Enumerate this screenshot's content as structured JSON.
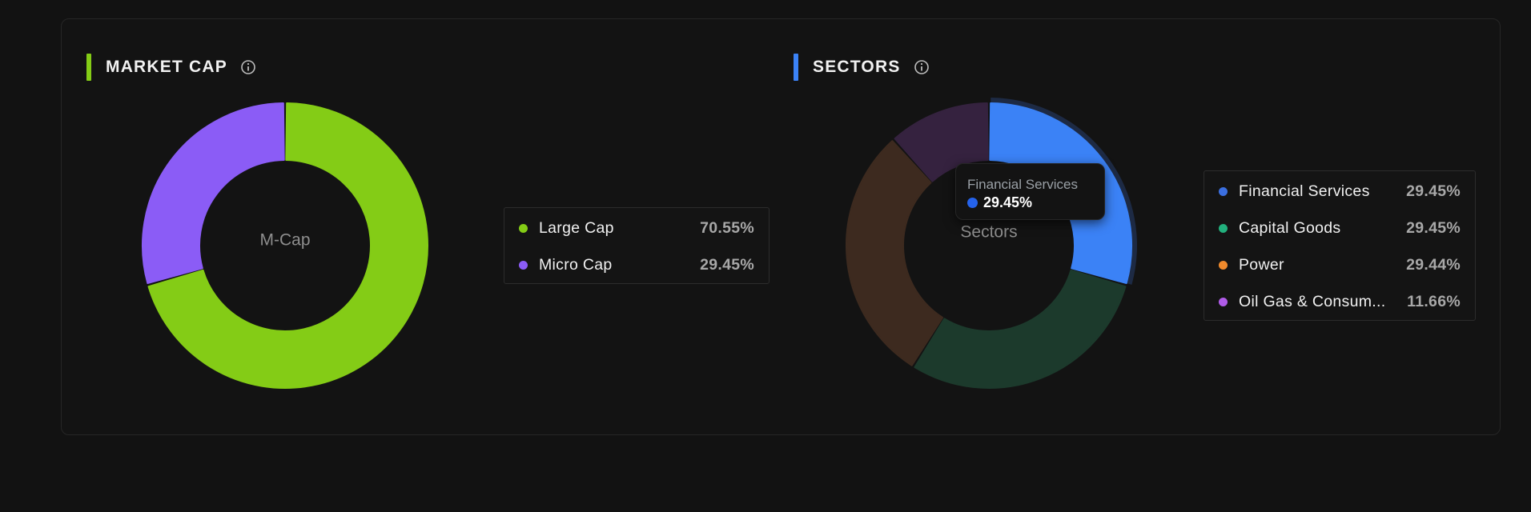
{
  "market_cap": {
    "title": "MARKET CAP",
    "accent": "#84cc16",
    "icon": "info-icon",
    "center_label": "M-Cap",
    "legend": [
      {
        "label": "Large Cap",
        "value": "70.55%",
        "color": "#84cc16"
      },
      {
        "label": "Micro Cap",
        "value": "29.45%",
        "color": "#8b5cf6"
      }
    ]
  },
  "sectors": {
    "title": "SECTORS",
    "accent": "#3b82f6",
    "icon": "info-icon",
    "center_label": "Sectors",
    "legend": [
      {
        "label": "Financial Services",
        "value": "29.45%",
        "color": "#3b82f6"
      },
      {
        "label": "Capital Goods",
        "value": "29.45%",
        "color": "#22b07d"
      },
      {
        "label": "Power",
        "value": "29.44%",
        "color": "#f08a2c"
      },
      {
        "label": "Oil Gas & Consum...",
        "value": "11.66%",
        "color": "#b05ce8"
      }
    ],
    "tooltip": {
      "title": "Financial Services",
      "value": "29.45%",
      "color": "#3b82f6"
    }
  },
  "chart_data": [
    {
      "type": "pie",
      "donut": true,
      "title": "MARKET CAP",
      "center_label": "M-Cap",
      "categories": [
        "Large Cap",
        "Micro Cap"
      ],
      "values": [
        70.55,
        29.45
      ],
      "colors": [
        "#84cc16",
        "#8b5cf6"
      ],
      "legend": "right"
    },
    {
      "type": "pie",
      "donut": true,
      "title": "SECTORS",
      "center_label": "Sectors",
      "categories": [
        "Financial Services",
        "Capital Goods",
        "Power",
        "Oil Gas & Consum..."
      ],
      "values": [
        29.45,
        29.45,
        29.44,
        11.66
      ],
      "colors": [
        "#3b82f6",
        "#1c3a2c",
        "#3d2a1f",
        "#35223f"
      ],
      "highlighted": "Financial Services",
      "legend": "right"
    }
  ]
}
